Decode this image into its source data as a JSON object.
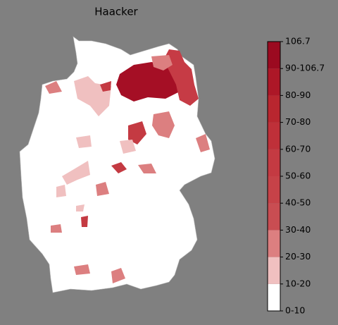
{
  "title": "Haacker",
  "colorbar": {
    "labels": [
      "0-10",
      "10-20",
      "20-30",
      "30-40",
      "40-50",
      "50-60",
      "60-70",
      "70-80",
      "80-90",
      "90-106.7",
      "106.7"
    ],
    "colors": [
      "#ffffff",
      "#f0c0c0",
      "#dc7f80",
      "#c94d52",
      "#c64248",
      "#c43a42",
      "#bf3039",
      "#b9262f",
      "#ad1727",
      "#9b0a20"
    ]
  }
}
